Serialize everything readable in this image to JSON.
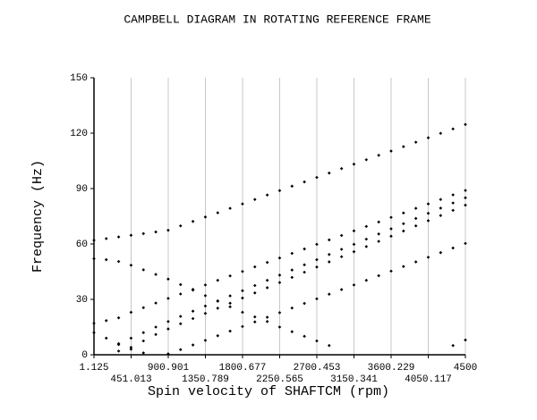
{
  "chart_data": {
    "type": "scatter",
    "title": "CAMPBELL DIAGRAM IN ROTATING REFERENCE FRAME",
    "x_label": "Spin velocity of SHAFTCM  (rpm)",
    "y_label": "Frequency (Hz)",
    "x": [
      1.125,
      150,
      300,
      450,
      600,
      750,
      900,
      1050,
      1200,
      1350,
      1500,
      1650,
      1800,
      1950,
      2100,
      2250,
      2400,
      2550,
      2700,
      2850,
      3000,
      3150,
      3300,
      3450,
      3600,
      3750,
      3900,
      4050,
      4200,
      4350,
      4500
    ],
    "series": [
      {
        "color": "#000000",
        "values": [
          62,
          62.9,
          63.8,
          64.7,
          65.6,
          66.5,
          67.4,
          69.8,
          72.2,
          74.6,
          76.9,
          79.3,
          81.7,
          84.1,
          86.5,
          88.9,
          91.3,
          93.6,
          96.0,
          98.4,
          100.8,
          103.2,
          105.6,
          108.0,
          110.3,
          112.7,
          115.1,
          117.5,
          119.9,
          122.3,
          124.7
        ]
      },
      {
        "color": "#000000",
        "values": [
          52,
          51.5,
          50.5,
          48.5,
          46,
          43.5,
          41,
          38,
          35,
          32,
          29,
          26,
          23,
          20.5,
          18,
          15,
          12.5,
          10,
          7.5,
          5,
          null,
          null,
          null,
          null,
          null,
          null,
          null,
          null,
          null,
          null,
          null
        ]
      },
      {
        "color": "#000000",
        "values": [
          17,
          18.5,
          20,
          23,
          25.5,
          28,
          30.5,
          32.9,
          35.4,
          37.8,
          40.3,
          42.7,
          45.1,
          47.6,
          50,
          52.4,
          54.9,
          57.3,
          59.8,
          62.2,
          64.6,
          67.1,
          69.5,
          71.9,
          74.4,
          76.8,
          79.3,
          81.7,
          84.1,
          86.6,
          89
        ]
      },
      {
        "color": "#000000",
        "values": [
          null,
          null,
          6,
          9,
          12,
          15,
          18,
          20.8,
          23.6,
          26.4,
          29.2,
          31.9,
          34.7,
          37.5,
          40.3,
          43.1,
          45.9,
          48.7,
          51.5,
          54.3,
          57.1,
          59.8,
          62.6,
          65.4,
          68.2,
          71,
          73.8,
          76.6,
          79.4,
          82.2,
          85
        ]
      },
      {
        "color": "#000000",
        "values": [
          null,
          null,
          2,
          4,
          7.5,
          11,
          14,
          16.8,
          19.6,
          22.4,
          25.2,
          27.9,
          30.7,
          33.5,
          36.3,
          39.1,
          41.9,
          44.7,
          47.5,
          50.3,
          53.1,
          55.8,
          58.6,
          61.4,
          64.2,
          67,
          69.8,
          72.6,
          75.4,
          78.2,
          81
        ]
      },
      {
        "color": "#000000",
        "values": [
          12,
          9,
          5.5,
          3,
          1,
          null,
          null,
          null,
          null,
          null,
          null,
          null,
          null,
          null,
          null,
          null,
          null,
          null,
          null,
          null,
          null,
          null,
          null,
          null,
          null,
          null,
          null,
          null,
          null,
          null,
          null
        ]
      },
      {
        "color": "#000000",
        "values": [
          null,
          null,
          null,
          null,
          null,
          null,
          0.5,
          2.8,
          5.3,
          7.8,
          10.3,
          12.8,
          15.3,
          17.8,
          20.3,
          22.8,
          25.3,
          27.8,
          30.3,
          32.8,
          35.3,
          37.8,
          40.3,
          42.8,
          45.3,
          47.8,
          50.3,
          52.8,
          55.3,
          57.8,
          60.3
        ]
      },
      {
        "color": "#000000",
        "values": [
          null,
          null,
          null,
          null,
          null,
          null,
          null,
          null,
          null,
          null,
          null,
          null,
          null,
          null,
          null,
          null,
          null,
          null,
          null,
          null,
          null,
          null,
          null,
          null,
          null,
          null,
          null,
          null,
          null,
          5,
          8
        ]
      }
    ],
    "xlim": [
      1.125,
      4500
    ],
    "xticks": [
      1.125,
      451.013,
      900.901,
      1350.789,
      1800.677,
      2250.565,
      2700.453,
      3150.341,
      3600.229,
      4050.117,
      4500
    ],
    "ylim": [
      0,
      150
    ],
    "yticks": [
      0,
      30,
      60,
      90,
      120,
      150
    ],
    "grid": true
  }
}
